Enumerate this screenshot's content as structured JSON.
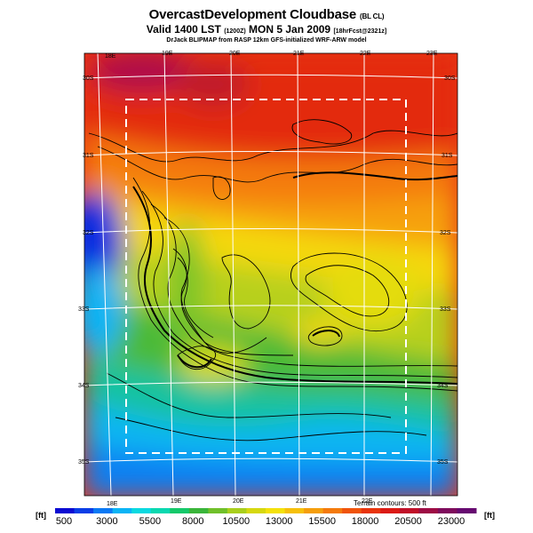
{
  "title": {
    "main": "OvercastDevelopment Cloudbase",
    "suffix": "(BL CL)"
  },
  "subtitle": {
    "valid": "Valid 1400 LST",
    "time_code": "(1200Z)",
    "date": "MON 5 Jan 2009",
    "forecast": "[18hrFcst@2321z]"
  },
  "source_line": "DrJack BLIPMAP from RASP 12km GFS-initialized WRF-ARW model",
  "map": {
    "lon_labels_top": [
      "18E",
      "19E",
      "20E",
      "21E",
      "22E",
      "23E"
    ],
    "lon_labels_bottom": [
      "18E",
      "19E",
      "20E",
      "21E",
      "22E"
    ],
    "lat_labels_left": [
      "30S",
      "31S",
      "32S",
      "33S",
      "34S",
      "35S"
    ],
    "lat_labels_right": [
      "30S",
      "31S",
      "32S",
      "33S",
      "34S",
      "35S"
    ],
    "terrain_note": "Terrain contours: 500 ft"
  },
  "colorbar": {
    "unit_left": "[ft]",
    "unit_right": "[ft]",
    "ticks": [
      "500",
      "3000",
      "5500",
      "8000",
      "10500",
      "13000",
      "15500",
      "18000",
      "20500",
      "23000"
    ],
    "colors": [
      "#0b0bd2",
      "#0b3ee6",
      "#0b79f4",
      "#0bb4f5",
      "#0bd9e0",
      "#0ad8b0",
      "#15c96a",
      "#3ab53a",
      "#70c02a",
      "#a9cf1c",
      "#d6d80f",
      "#f4e10b",
      "#f6c00c",
      "#f59e0c",
      "#f47a0c",
      "#f0540c",
      "#e8340c",
      "#db1a14",
      "#c01028",
      "#9d0c44",
      "#7e0c5c",
      "#660a70"
    ]
  }
}
